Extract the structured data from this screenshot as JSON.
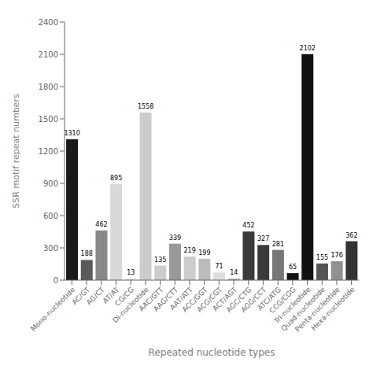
{
  "chart_data": {
    "type": "bar",
    "categories": [
      "Mono-nucleotide",
      "AC/GT",
      "AG/CT",
      "AT/AT",
      "CG/CG",
      "Di-nucleotide",
      "AAC/GTT",
      "AAG/CTT",
      "AAT/ATT",
      "ACC/GGT",
      "ACG/CGT",
      "ACT/AGT",
      "AGC/CTG",
      "AGG/CCT",
      "ATC/ATG",
      "CCG/CGG",
      "Tri-nucleotide",
      "Quad-nucleotide",
      "Penta-nucleotide",
      "Hexa-nucleotide"
    ],
    "values": [
      1310,
      188,
      462,
      895,
      13,
      1558,
      135,
      339,
      219,
      199,
      71,
      14,
      452,
      327,
      281,
      65,
      2102,
      155,
      176,
      362
    ],
    "colors": [
      "#1a1a1a",
      "#5a5a5a",
      "#888888",
      "#d8d8d8",
      "#e0e0e0",
      "#cccccc",
      "#cccccc",
      "#999999",
      "#cccccc",
      "#bbbbbb",
      "#dddddd",
      "#aaaaaa",
      "#3a3a3a",
      "#3a3a3a",
      "#777777",
      "#111111",
      "#111111",
      "#555555",
      "#909090",
      "#333333"
    ],
    "xlabel": "Repeated nucleotide types",
    "ylabel": "SSR motif repeat numbers",
    "ylim": [
      0,
      2400
    ],
    "yticks": [
      0,
      300,
      600,
      900,
      1200,
      1500,
      1800,
      2100,
      2400
    ],
    "data_labels": true,
    "grid": false
  }
}
